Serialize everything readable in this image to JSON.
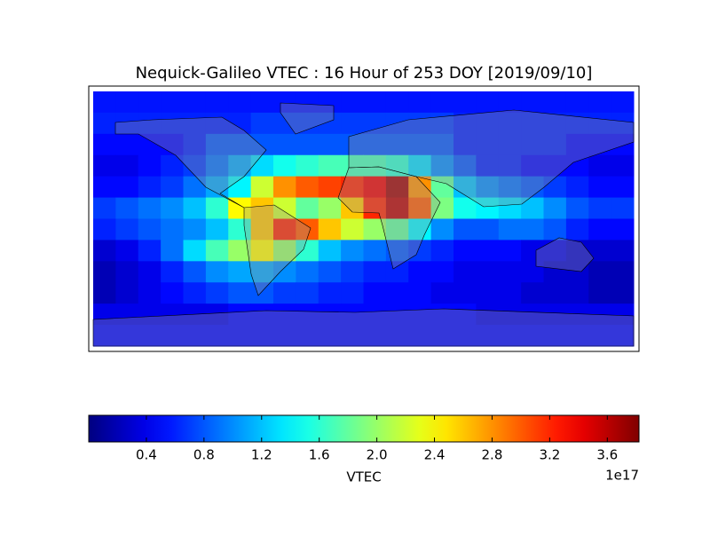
{
  "chart_data": {
    "type": "heatmap",
    "title": "Nequick-Galileo VTEC : 16 Hour of 253 DOY [2019/09/10]",
    "colormap": "jet",
    "xlim": [
      -180,
      180
    ],
    "ylim": [
      90,
      -90
    ],
    "x": [
      -172.5,
      -157.5,
      -142.5,
      -127.5,
      -112.5,
      -97.5,
      -82.5,
      -67.5,
      -52.5,
      -37.5,
      -22.5,
      -7.5,
      7.5,
      22.5,
      37.5,
      52.5,
      67.5,
      82.5,
      97.5,
      112.5,
      127.5,
      142.5,
      157.5,
      172.5
    ],
    "y": [
      82.5,
      67.5,
      52.5,
      37.5,
      22.5,
      7.5,
      -7.5,
      -22.5,
      -37.5,
      -52.5,
      -67.5,
      -82.5
    ],
    "values": [
      [
        0.55,
        0.55,
        0.55,
        0.55,
        0.55,
        0.55,
        0.55,
        0.55,
        0.55,
        0.55,
        0.55,
        0.55,
        0.55,
        0.55,
        0.55,
        0.55,
        0.55,
        0.55,
        0.55,
        0.55,
        0.55,
        0.55,
        0.55,
        0.55
      ],
      [
        0.6,
        0.6,
        0.6,
        0.6,
        0.6,
        0.6,
        0.6,
        0.7,
        0.7,
        0.7,
        0.7,
        0.7,
        0.7,
        0.7,
        0.7,
        0.7,
        0.6,
        0.6,
        0.6,
        0.6,
        0.6,
        0.6,
        0.6,
        0.6
      ],
      [
        0.5,
        0.5,
        0.5,
        0.5,
        0.6,
        0.8,
        0.8,
        0.8,
        0.8,
        0.8,
        0.8,
        0.8,
        0.8,
        0.8,
        0.8,
        0.8,
        0.6,
        0.6,
        0.6,
        0.6,
        0.6,
        0.5,
        0.5,
        0.5
      ],
      [
        0.4,
        0.4,
        0.5,
        0.6,
        0.7,
        0.9,
        1.1,
        1.3,
        1.5,
        1.6,
        1.7,
        1.7,
        1.7,
        1.6,
        1.3,
        1.0,
        0.8,
        0.6,
        0.6,
        0.5,
        0.5,
        0.5,
        0.4,
        0.4
      ],
      [
        0.5,
        0.5,
        0.6,
        0.7,
        0.9,
        1.1,
        1.4,
        2.2,
        2.8,
        3.0,
        3.1,
        3.2,
        3.4,
        3.7,
        2.8,
        1.8,
        1.2,
        1.0,
        0.9,
        0.8,
        0.7,
        0.6,
        0.5,
        0.5
      ],
      [
        0.7,
        0.8,
        0.9,
        1.0,
        1.2,
        1.6,
        2.4,
        2.6,
        2.2,
        1.8,
        2.0,
        2.6,
        3.2,
        3.6,
        3.0,
        1.9,
        1.5,
        1.4,
        1.3,
        1.2,
        1.0,
        0.8,
        0.7,
        0.7
      ],
      [
        0.6,
        0.7,
        0.8,
        0.9,
        1.0,
        1.2,
        1.6,
        2.6,
        3.2,
        3.0,
        2.6,
        2.2,
        2.0,
        1.8,
        1.4,
        1.0,
        0.8,
        0.8,
        0.9,
        0.9,
        0.8,
        0.6,
        0.5,
        0.5
      ],
      [
        0.3,
        0.4,
        0.6,
        0.9,
        1.3,
        1.7,
        2.0,
        2.4,
        2.0,
        1.6,
        1.2,
        1.0,
        0.9,
        0.8,
        0.7,
        0.6,
        0.5,
        0.5,
        0.5,
        0.4,
        0.4,
        0.3,
        0.3,
        0.3
      ],
      [
        0.2,
        0.3,
        0.4,
        0.6,
        0.8,
        1.0,
        1.1,
        1.1,
        1.0,
        0.9,
        0.8,
        0.7,
        0.6,
        0.6,
        0.5,
        0.5,
        0.4,
        0.4,
        0.4,
        0.4,
        0.3,
        0.3,
        0.2,
        0.2
      ],
      [
        0.2,
        0.3,
        0.4,
        0.5,
        0.6,
        0.7,
        0.8,
        0.8,
        0.7,
        0.7,
        0.6,
        0.6,
        0.5,
        0.5,
        0.5,
        0.4,
        0.4,
        0.4,
        0.4,
        0.3,
        0.3,
        0.3,
        0.2,
        0.2
      ],
      [
        0.4,
        0.4,
        0.4,
        0.4,
        0.4,
        0.4,
        0.5,
        0.5,
        0.5,
        0.5,
        0.5,
        0.5,
        0.5,
        0.5,
        0.5,
        0.5,
        0.5,
        0.4,
        0.4,
        0.4,
        0.4,
        0.4,
        0.4,
        0.4
      ],
      [
        0.5,
        0.5,
        0.5,
        0.5,
        0.5,
        0.5,
        0.5,
        0.5,
        0.5,
        0.5,
        0.5,
        0.5,
        0.5,
        0.5,
        0.5,
        0.5,
        0.5,
        0.5,
        0.5,
        0.5,
        0.5,
        0.5,
        0.5,
        0.5
      ]
    ],
    "colorbar": {
      "label": "VTEC",
      "offset_label": "1e17",
      "lim": [
        0.0,
        3.82
      ],
      "ticks": [
        0.4,
        0.8,
        1.2,
        1.6,
        {
          "value": 2,
          "label": "2.0"
        },
        2.4,
        2.8,
        3.2,
        3.6
      ]
    }
  }
}
